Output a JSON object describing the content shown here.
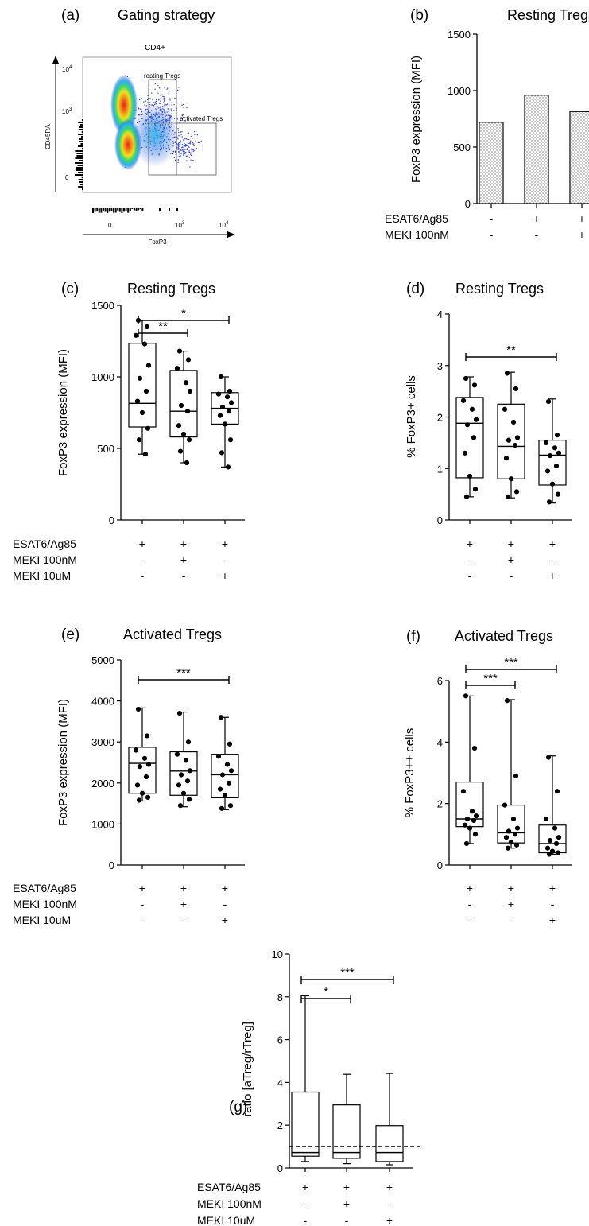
{
  "panel_a": {
    "letter": "(a)",
    "title": "Gating strategy",
    "plot_title": "CD4+",
    "ylabel": "CD45RA",
    "xlabel": "FoxP3",
    "yticks": [
      {
        "base": "10",
        "exp": "4"
      },
      {
        "base": "10",
        "exp": "3"
      },
      {
        "base": "0",
        "exp": ""
      }
    ],
    "xticks": [
      {
        "base": "0",
        "exp": ""
      },
      {
        "base": "10",
        "exp": "3"
      },
      {
        "base": "10",
        "exp": "4"
      }
    ],
    "gate_resting": "resting Tregs",
    "gate_activated": "activated Tregs"
  },
  "condition_labels": {
    "esat": "ESAT6/Ag85",
    "meki100": "MEKI 100nM",
    "meki10": "MEKI 10uM"
  },
  "chart_data": [
    {
      "panel": "(b)",
      "type": "bar",
      "title": "Resting Tregs",
      "ylabel": "FoxP3 expression (MFI)",
      "ylim": [
        0,
        1500
      ],
      "yticks": [
        0,
        500,
        1000,
        1500
      ],
      "values": [
        720,
        960,
        815
      ],
      "conditions": [
        [
          "-",
          "+",
          "+"
        ],
        [
          "-",
          "-",
          "+"
        ]
      ],
      "condition_rows": [
        "ESAT6/Ag85",
        "MEKI 100nM"
      ]
    },
    {
      "panel": "(c)",
      "type": "box",
      "title": "Resting Tregs",
      "ylabel": "FoxP3 expression (MFI)",
      "ylim": [
        0,
        1500
      ],
      "yticks": [
        0,
        500,
        1000,
        1500
      ],
      "boxes": [
        {
          "min": 460,
          "q1": 650,
          "median": 815,
          "q3": 1235,
          "max": 1395,
          "points": [
            1395,
            1350,
            1290,
            1230,
            1080,
            990,
            900,
            830,
            750,
            640,
            560,
            460
          ]
        },
        {
          "min": 400,
          "q1": 580,
          "median": 760,
          "q3": 1045,
          "max": 1180,
          "points": [
            1180,
            1120,
            1060,
            960,
            900,
            800,
            760,
            660,
            600,
            560,
            480,
            400
          ]
        },
        {
          "min": 370,
          "q1": 670,
          "median": 780,
          "q3": 890,
          "max": 1000,
          "points": [
            1000,
            900,
            880,
            860,
            820,
            790,
            760,
            730,
            670,
            560,
            470,
            370
          ]
        }
      ],
      "significance": [
        {
          "from": 0,
          "to": 1,
          "label": "**"
        },
        {
          "from": 0,
          "to": 2,
          "label": "*"
        }
      ],
      "conditions": [
        [
          "+",
          "+",
          "+"
        ],
        [
          "-",
          "+",
          "-"
        ],
        [
          "-",
          "-",
          "+"
        ]
      ],
      "condition_rows": [
        "ESAT6/Ag85",
        "MEKI 100nM",
        "MEKI 10uM"
      ]
    },
    {
      "panel": "(d)",
      "type": "box",
      "title": "Resting Tregs",
      "ylabel": "% FoxP3+ cells",
      "ylim": [
        0,
        4
      ],
      "yticks": [
        0,
        1,
        2,
        3,
        4
      ],
      "boxes": [
        {
          "min": 0.45,
          "q1": 0.82,
          "median": 1.88,
          "q3": 2.38,
          "max": 2.78,
          "points": [
            2.75,
            2.62,
            2.32,
            2.15,
            1.95,
            1.85,
            1.6,
            1.3,
            0.85,
            0.6,
            0.45
          ]
        },
        {
          "min": 0.43,
          "q1": 0.8,
          "median": 1.43,
          "q3": 2.25,
          "max": 2.87,
          "points": [
            2.85,
            2.55,
            2.15,
            1.9,
            1.6,
            1.55,
            1.45,
            1.2,
            0.8,
            0.55,
            0.45
          ]
        },
        {
          "min": 0.33,
          "q1": 0.68,
          "median": 1.26,
          "q3": 1.55,
          "max": 2.35,
          "points": [
            2.3,
            1.65,
            1.5,
            1.4,
            1.3,
            1.25,
            1.05,
            0.95,
            0.7,
            0.5,
            0.35
          ]
        }
      ],
      "significance": [
        {
          "from": 0,
          "to": 2,
          "label": "**"
        }
      ],
      "conditions": [
        [
          "+",
          "+",
          "+"
        ],
        [
          "-",
          "+",
          "-"
        ],
        [
          "-",
          "-",
          "+"
        ]
      ],
      "condition_rows": [
        "ESAT6/Ag85",
        "MEKI 100nM",
        "MEKI 10uM"
      ]
    },
    {
      "panel": "(e)",
      "type": "box",
      "title": "Activated Tregs",
      "ylabel": "FoxP3 expression (MFI)",
      "ylim": [
        0,
        5000
      ],
      "yticks": [
        0,
        1000,
        2000,
        3000,
        4000,
        5000
      ],
      "boxes": [
        {
          "min": 1560,
          "q1": 1750,
          "median": 2480,
          "q3": 2870,
          "max": 3830,
          "points": [
            3800,
            3150,
            2800,
            2600,
            2450,
            2400,
            2150,
            1950,
            1750,
            1650,
            1580
          ]
        },
        {
          "min": 1420,
          "q1": 1700,
          "median": 2290,
          "q3": 2760,
          "max": 3730,
          "points": [
            3700,
            3000,
            2700,
            2550,
            2300,
            2200,
            2050,
            1950,
            1750,
            1600,
            1450
          ]
        },
        {
          "min": 1350,
          "q1": 1640,
          "median": 2200,
          "q3": 2700,
          "max": 3600,
          "points": [
            3600,
            2950,
            2650,
            2450,
            2300,
            2200,
            2000,
            1850,
            1700,
            1450,
            1380
          ]
        }
      ],
      "significance": [
        {
          "from": 0,
          "to": 2,
          "label": "***"
        }
      ],
      "conditions": [
        [
          "+",
          "+",
          "+"
        ],
        [
          "-",
          "+",
          "-"
        ],
        [
          "-",
          "-",
          "+"
        ]
      ],
      "condition_rows": [
        "ESAT6/Ag85",
        "MEKI 100nM",
        "MEKI 10uM"
      ]
    },
    {
      "panel": "(f)",
      "type": "box",
      "title": "Activated Tregs",
      "ylabel": "% FoxP3++ cells",
      "ylim": [
        0,
        6
      ],
      "yticks": [
        0,
        2,
        4,
        6
      ],
      "boxes": [
        {
          "min": 0.7,
          "q1": 1.25,
          "median": 1.5,
          "q3": 2.7,
          "max": 5.5,
          "points": [
            5.5,
            3.8,
            2.4,
            1.75,
            1.6,
            1.5,
            1.45,
            1.3,
            1.2,
            1.0,
            0.7
          ]
        },
        {
          "min": 0.55,
          "q1": 0.72,
          "median": 1.05,
          "q3": 1.95,
          "max": 5.38,
          "points": [
            5.35,
            2.9,
            1.95,
            1.5,
            1.2,
            1.1,
            1.0,
            0.9,
            0.75,
            0.65,
            0.55
          ]
        },
        {
          "min": 0.35,
          "q1": 0.4,
          "median": 0.7,
          "q3": 1.3,
          "max": 3.55,
          "points": [
            3.5,
            2.4,
            1.5,
            1.2,
            0.9,
            0.8,
            0.7,
            0.55,
            0.45,
            0.4,
            0.35
          ]
        }
      ],
      "significance": [
        {
          "from": 0,
          "to": 1,
          "label": "***"
        },
        {
          "from": 0,
          "to": 2,
          "label": "***"
        }
      ],
      "conditions": [
        [
          "+",
          "+",
          "+"
        ],
        [
          "-",
          "+",
          "-"
        ],
        [
          "-",
          "-",
          "+"
        ]
      ],
      "condition_rows": [
        "ESAT6/Ag85",
        "MEKI 100nM",
        "MEKI 10uM"
      ]
    },
    {
      "panel": "(g)",
      "type": "box",
      "title": "",
      "ylabel": "ratio [aTreg/rTreg]",
      "ylim": [
        0,
        10
      ],
      "yticks": [
        0,
        2,
        4,
        6,
        8,
        10
      ],
      "reference_line": 1,
      "boxes": [
        {
          "min": 0.3,
          "q1": 0.55,
          "median": 0.72,
          "q3": 3.55,
          "max": 8.05,
          "points": []
        },
        {
          "min": 0.2,
          "q1": 0.45,
          "median": 0.72,
          "q3": 2.95,
          "max": 4.38,
          "points": []
        },
        {
          "min": 0.15,
          "q1": 0.3,
          "median": 0.72,
          "q3": 1.98,
          "max": 4.42,
          "points": []
        }
      ],
      "significance": [
        {
          "from": 0,
          "to": 1,
          "label": "*"
        },
        {
          "from": 0,
          "to": 2,
          "label": "***"
        }
      ],
      "conditions": [
        [
          "+",
          "+",
          "+"
        ],
        [
          "-",
          "+",
          "-"
        ],
        [
          "-",
          "-",
          "+"
        ]
      ],
      "condition_rows": [
        "ESAT6/Ag85",
        "MEKI 100nM",
        "MEKI 10uM"
      ]
    }
  ]
}
